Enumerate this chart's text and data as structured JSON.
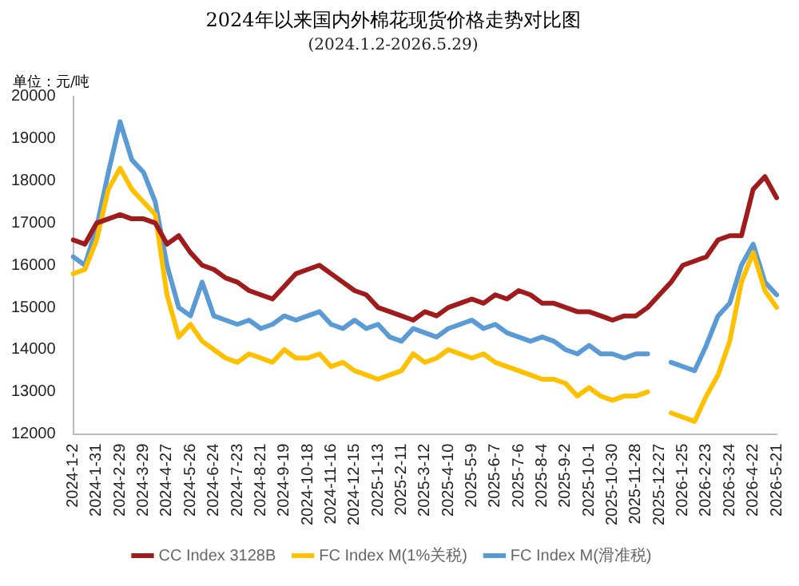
{
  "chart_data": {
    "type": "line",
    "title": "2024年以来国内外棉花现货价格走势对比图",
    "subtitle": "(2024.1.2-2026.5.29)",
    "ylabel": "单位：元/吨",
    "categories": [
      "2024-1-2",
      null,
      "2024-1-31",
      null,
      "2024-2-29",
      null,
      "2024-3-29",
      null,
      "2024-4-27",
      null,
      "2024-5-26",
      null,
      "2024-6-24",
      null,
      "2024-7-23",
      null,
      "2024-8-21",
      null,
      "2024-9-19",
      null,
      "2024-10-18",
      null,
      "2024-11-16",
      null,
      "2024-12-15",
      null,
      "2025-1-13",
      null,
      "2025-2-11",
      null,
      "2025-3-12",
      null,
      "2025-4-10",
      null,
      "2025-5-9",
      null,
      "2025-6-7",
      null,
      "2025-7-6",
      null,
      "2025-8-4",
      null,
      "2025-9-2",
      null,
      "2025-10-1",
      null,
      "2025-10-30",
      null,
      "2025-11-28",
      null,
      "2025-12-27",
      null,
      "2026-1-25",
      null,
      "2026-2-23",
      null,
      "2026-3-24",
      null,
      "2026-4-22",
      null,
      "2026-5-21"
    ],
    "series": [
      {
        "name": "CC Index 3128B",
        "color": "#a01c1c",
        "values": [
          16600,
          16500,
          17000,
          17100,
          17200,
          17100,
          17100,
          17000,
          16500,
          16700,
          16300,
          16000,
          15900,
          15700,
          15600,
          15400,
          15300,
          15200,
          15500,
          15800,
          15900,
          16000,
          15800,
          15600,
          15400,
          15300,
          15000,
          14900,
          14800,
          14700,
          14900,
          14800,
          15000,
          15100,
          15200,
          15100,
          15300,
          15200,
          15400,
          15300,
          15100,
          15100,
          15000,
          14900,
          14900,
          14800,
          14700,
          14800,
          14800,
          15000,
          15300,
          15600,
          16000,
          16100,
          16200,
          16600,
          16700,
          16700,
          17800,
          18100,
          17600
        ]
      },
      {
        "name": "FC Index M(1%关税)",
        "color": "#ffc000",
        "values": [
          15800,
          15900,
          16600,
          17800,
          18300,
          17800,
          17500,
          17200,
          15300,
          14300,
          14600,
          14200,
          14000,
          13800,
          13700,
          13900,
          13800,
          13700,
          14000,
          13800,
          13800,
          13900,
          13600,
          13700,
          13500,
          13400,
          13300,
          13400,
          13500,
          13900,
          13700,
          13800,
          14000,
          13900,
          13800,
          13900,
          13700,
          13600,
          13500,
          13400,
          13300,
          13300,
          13200,
          12900,
          13100,
          12900,
          12800,
          12900,
          12900,
          13000,
          null,
          12500,
          12400,
          12300,
          12900,
          13400,
          14200,
          15600,
          16300,
          15400,
          15000
        ]
      },
      {
        "name": "FC Index M(滑准税)",
        "color": "#5b9bd5",
        "values": [
          16200,
          16000,
          16900,
          18200,
          19400,
          18500,
          18200,
          17500,
          16000,
          15000,
          14800,
          15600,
          14800,
          14700,
          14600,
          14700,
          14500,
          14600,
          14800,
          14700,
          14800,
          14900,
          14600,
          14500,
          14700,
          14500,
          14600,
          14300,
          14200,
          14500,
          14400,
          14300,
          14500,
          14600,
          14700,
          14500,
          14600,
          14400,
          14300,
          14200,
          14300,
          14200,
          14000,
          13900,
          14100,
          13900,
          13900,
          13800,
          13900,
          13900,
          null,
          13700,
          13600,
          13500,
          14100,
          14800,
          15100,
          16000,
          16500,
          15600,
          15300
        ]
      }
    ],
    "ylim": [
      12000,
      20000
    ],
    "yticks": [
      12000,
      13000,
      14000,
      15000,
      16000,
      17000,
      18000,
      19000,
      20000
    ],
    "grid": false,
    "legend": "bottom",
    "marker": "none",
    "line_style": "solid"
  }
}
